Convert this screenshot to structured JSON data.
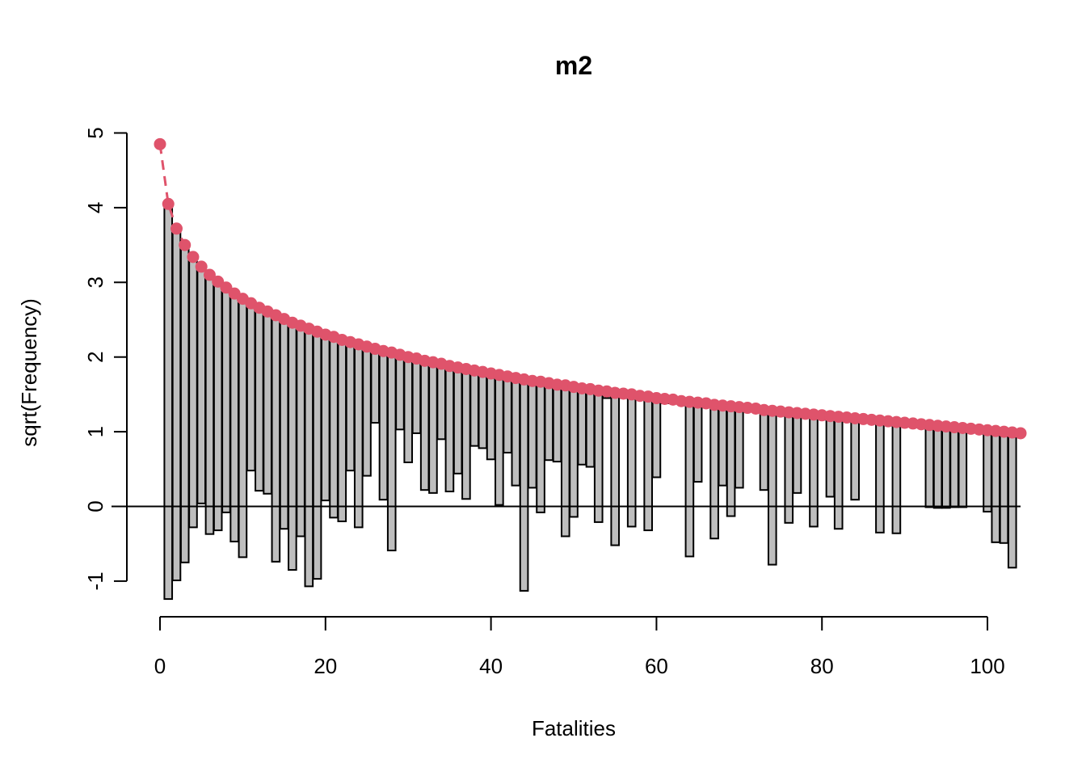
{
  "chart_data": {
    "type": "bar",
    "subtype": "hanging-rootogram",
    "title": "m2",
    "xlabel": "Fatalities",
    "ylabel": "sqrt(Frequency)",
    "xlim": [
      0,
      104
    ],
    "ylim": [
      -1.25,
      5
    ],
    "x_ticks": [
      0,
      20,
      40,
      60,
      80,
      100
    ],
    "y_ticks": [
      -1,
      0,
      1,
      2,
      3,
      4,
      5
    ],
    "grid": false,
    "legend": "none",
    "colors": {
      "bar_fill": "#bebebe",
      "bar_stroke": "#000000",
      "expected": "#df536b",
      "reference_line": "#000000"
    },
    "expected": [
      4.85,
      4.05,
      3.72,
      3.5,
      3.34,
      3.21,
      3.1,
      3.01,
      2.93,
      2.85,
      2.78,
      2.72,
      2.66,
      2.61,
      2.56,
      2.51,
      2.46,
      2.42,
      2.38,
      2.34,
      2.3,
      2.27,
      2.23,
      2.2,
      2.17,
      2.14,
      2.11,
      2.08,
      2.06,
      2.03,
      2.0,
      1.98,
      1.95,
      1.93,
      1.91,
      1.88,
      1.86,
      1.84,
      1.82,
      1.8,
      1.78,
      1.76,
      1.74,
      1.72,
      1.7,
      1.68,
      1.67,
      1.65,
      1.63,
      1.62,
      1.6,
      1.58,
      1.57,
      1.55,
      1.54,
      1.52,
      1.51,
      1.5,
      1.48,
      1.47,
      1.45,
      1.44,
      1.43,
      1.41,
      1.4,
      1.39,
      1.38,
      1.36,
      1.35,
      1.34,
      1.33,
      1.32,
      1.31,
      1.29,
      1.28,
      1.27,
      1.26,
      1.25,
      1.24,
      1.23,
      1.22,
      1.21,
      1.2,
      1.19,
      1.18,
      1.17,
      1.16,
      1.15,
      1.14,
      1.13,
      1.12,
      1.11,
      1.1,
      1.09,
      1.08,
      1.07,
      1.06,
      1.05,
      1.04,
      1.03,
      1.02,
      1.01,
      1.0,
      0.99,
      0.98
    ],
    "bar_bottoms": [
      null,
      -1.24,
      -0.99,
      -0.75,
      -0.28,
      0.04,
      -0.37,
      -0.32,
      -0.08,
      -0.47,
      -0.68,
      0.48,
      0.21,
      0.17,
      -0.74,
      -0.3,
      -0.85,
      -0.4,
      -1.07,
      -0.97,
      0.08,
      -0.15,
      -0.2,
      0.48,
      -0.28,
      0.41,
      1.12,
      0.09,
      -0.59,
      1.03,
      0.59,
      0.98,
      0.22,
      0.18,
      0.9,
      0.2,
      0.44,
      0.1,
      0.81,
      0.78,
      0.63,
      0.02,
      0.72,
      0.28,
      -1.13,
      0.25,
      -0.08,
      0.62,
      0.6,
      -0.4,
      -0.14,
      0.56,
      0.53,
      -0.21,
      1.45,
      -0.52,
      1.45,
      -0.27,
      1.45,
      -0.32,
      0.39,
      1.38,
      1.38,
      1.38,
      -0.67,
      0.33,
      1.34,
      -0.43,
      0.28,
      -0.13,
      0.25,
      1.31,
      1.29,
      0.22,
      -0.78,
      1.26,
      -0.22,
      0.18,
      1.24,
      -0.27,
      1.22,
      0.13,
      -0.3,
      1.19,
      0.09,
      1.18,
      1.17,
      -0.35,
      1.15,
      -0.36,
      1.13,
      1.12,
      1.11,
      -0.01,
      -0.02,
      -0.02,
      -0.01,
      -0.01,
      1.06,
      1.05,
      -0.07,
      -0.48,
      -0.49,
      -0.82
    ]
  }
}
